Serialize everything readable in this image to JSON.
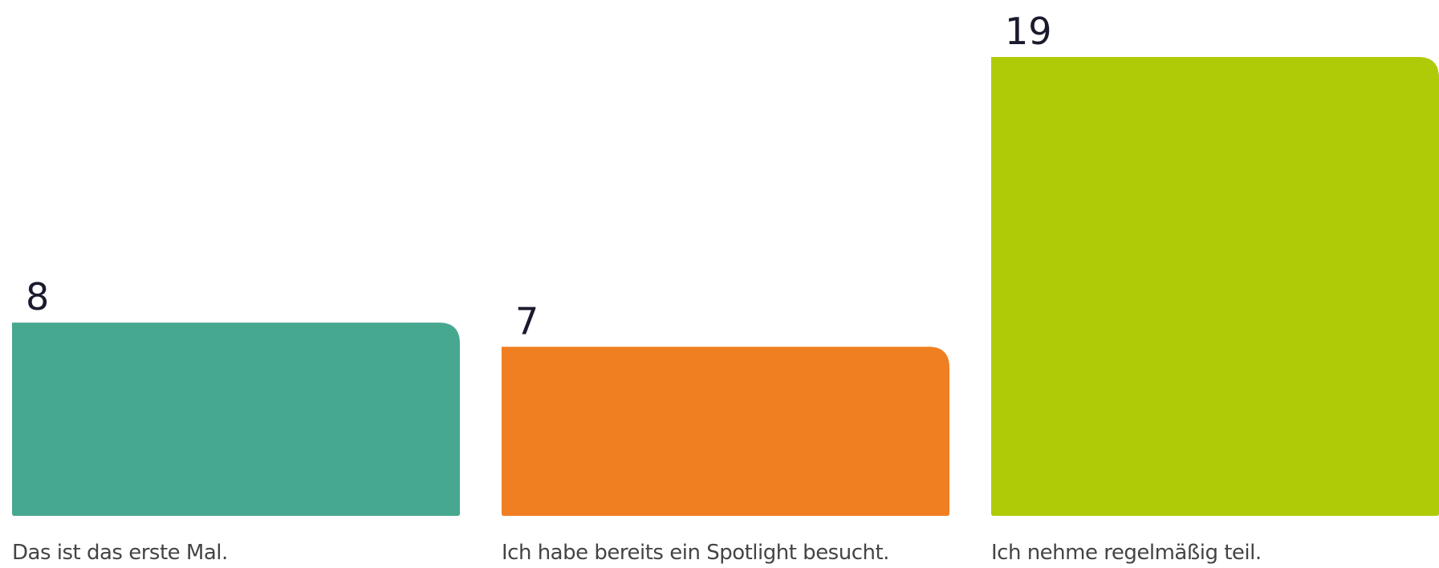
{
  "chart_data": {
    "type": "bar",
    "categories": [
      "Das ist das erste Mal.",
      "Ich habe bereits ein Spotlight besucht.",
      "Ich nehme regelmäßig teil."
    ],
    "values": [
      8,
      7,
      19
    ],
    "colors": [
      "#47a890",
      "#f07f22",
      "#afcb08"
    ]
  }
}
